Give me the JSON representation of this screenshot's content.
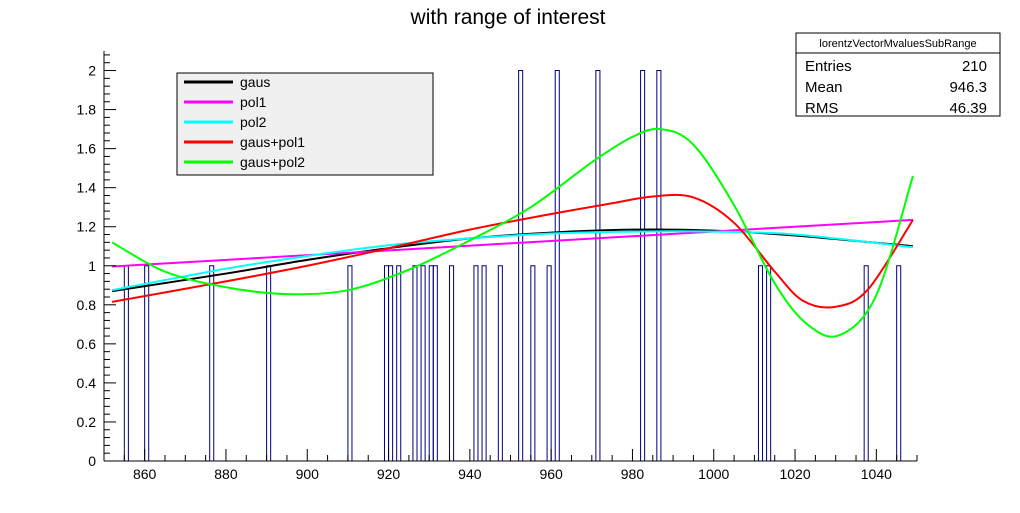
{
  "chart_data": {
    "type": "histogram",
    "title": "with range of interest",
    "xlabel": "",
    "ylabel": "",
    "xlim": [
      850,
      1050
    ],
    "ylim": [
      0,
      2.1
    ],
    "bin_width": 1,
    "grid": false,
    "x_ticks": [
      860,
      880,
      900,
      920,
      940,
      960,
      980,
      1000,
      1020,
      1040
    ],
    "y_ticks": [
      0,
      0.2,
      0.4,
      0.6,
      0.8,
      1,
      1.2,
      1.4,
      1.6,
      1.8,
      2
    ],
    "histogram": {
      "color": "#000080",
      "bins": [
        {
          "x": 855,
          "count": 1
        },
        {
          "x": 860,
          "count": 1
        },
        {
          "x": 876,
          "count": 1
        },
        {
          "x": 890,
          "count": 1
        },
        {
          "x": 910,
          "count": 1
        },
        {
          "x": 919,
          "count": 1
        },
        {
          "x": 920,
          "count": 1
        },
        {
          "x": 922,
          "count": 1
        },
        {
          "x": 926,
          "count": 1
        },
        {
          "x": 928,
          "count": 1
        },
        {
          "x": 930,
          "count": 1
        },
        {
          "x": 931,
          "count": 1
        },
        {
          "x": 935,
          "count": 1
        },
        {
          "x": 941,
          "count": 1
        },
        {
          "x": 943,
          "count": 1
        },
        {
          "x": 947,
          "count": 1
        },
        {
          "x": 952,
          "count": 2
        },
        {
          "x": 955,
          "count": 1
        },
        {
          "x": 959,
          "count": 1
        },
        {
          "x": 961,
          "count": 2
        },
        {
          "x": 971,
          "count": 2
        },
        {
          "x": 982,
          "count": 2
        },
        {
          "x": 986,
          "count": 2
        },
        {
          "x": 1011,
          "count": 1
        },
        {
          "x": 1013,
          "count": 1
        },
        {
          "x": 1037,
          "count": 1
        },
        {
          "x": 1045,
          "count": 1
        }
      ]
    },
    "series": [
      {
        "name": "gaus",
        "color": "#000000",
        "x": [
          852,
          880,
          900,
          920,
          940,
          960,
          980,
          1000,
          1020,
          1049
        ],
        "y": [
          0.87,
          0.96,
          1.03,
          1.09,
          1.14,
          1.17,
          1.185,
          1.18,
          1.155,
          1.1
        ]
      },
      {
        "name": "pol1",
        "color": "#ff00ff",
        "x": [
          852,
          1049
        ],
        "y": [
          0.996,
          1.235
        ]
      },
      {
        "name": "pol2",
        "color": "#00ffff",
        "x": [
          852,
          880,
          900,
          920,
          940,
          960,
          980,
          1000,
          1020,
          1049
        ],
        "y": [
          0.875,
          0.985,
          1.05,
          1.105,
          1.14,
          1.165,
          1.175,
          1.175,
          1.16,
          1.095
        ]
      },
      {
        "name": "gaus+pol1",
        "color": "#ff0000",
        "x": [
          852,
          880,
          900,
          920,
          940,
          960,
          975,
          985,
          995,
          1005,
          1015,
          1022,
          1030,
          1038,
          1049
        ],
        "y": [
          0.815,
          0.92,
          1.0,
          1.09,
          1.185,
          1.265,
          1.32,
          1.355,
          1.35,
          1.22,
          0.97,
          0.82,
          0.79,
          0.88,
          1.235
        ]
      },
      {
        "name": "gaus+pol2",
        "color": "#00ff00",
        "x": [
          852,
          865,
          880,
          895,
          910,
          925,
          940,
          955,
          970,
          980,
          987,
          995,
          1005,
          1015,
          1023,
          1031,
          1040,
          1049
        ],
        "y": [
          1.12,
          0.97,
          0.89,
          0.855,
          0.875,
          0.98,
          1.13,
          1.3,
          1.53,
          1.66,
          1.7,
          1.62,
          1.31,
          0.91,
          0.7,
          0.645,
          0.85,
          1.46
        ]
      }
    ],
    "legend": {
      "position": "top-left",
      "entries": [
        "gaus",
        "pol1",
        "pol2",
        "gaus+pol1",
        "gaus+pol2"
      ]
    },
    "stats": {
      "title": "lorentzVectorMvaluesSubRange",
      "rows": [
        {
          "label": "Entries",
          "value": "210"
        },
        {
          "label": "Mean",
          "value": "946.3"
        },
        {
          "label": "RMS",
          "value": "46.39"
        }
      ]
    }
  }
}
